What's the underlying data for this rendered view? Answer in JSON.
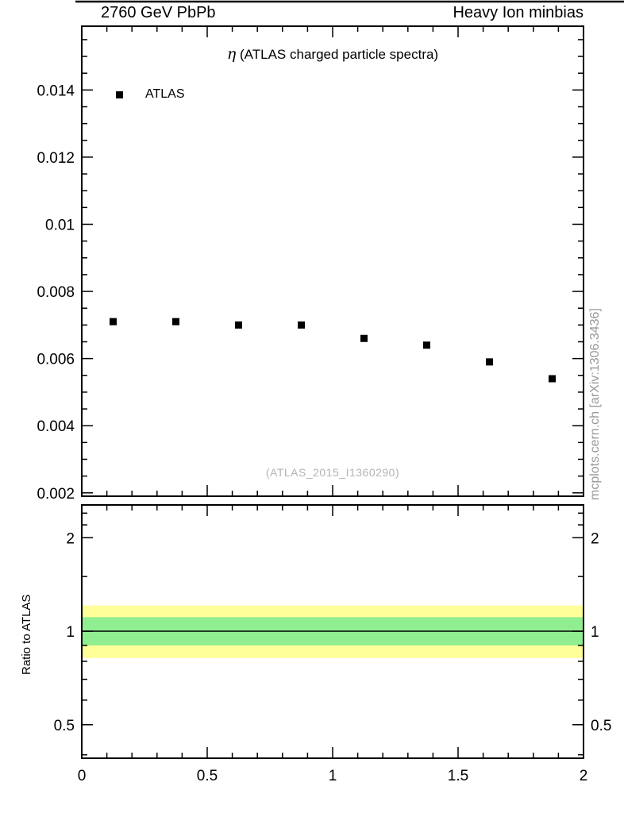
{
  "header": {
    "left": "2760 GeV PbPb",
    "right": "Heavy Ion minbias"
  },
  "side_watermark": "mcplots.cern.ch [arXiv:1306.3436]",
  "chart_data": {
    "type": "scatter",
    "title": "η (ATLAS charged particle spectra)",
    "title_symbol": "η",
    "title_rest": " (ATLAS charged particle spectra)",
    "analysis_tag": "(ATLAS_2015_I1360290)",
    "xlabel": "",
    "legend": [
      {
        "label": "ATLAS",
        "marker": "square",
        "color": "#000000"
      }
    ],
    "x_ticks": [
      0,
      0.5,
      1,
      1.5,
      2
    ],
    "x_tick_labels": [
      "0",
      "0.5",
      "1",
      "1.5",
      "2"
    ],
    "x_minor_step": 0.1,
    "main_panel": {
      "xlim": [
        0,
        2
      ],
      "ylim": [
        0.0019,
        0.0159
      ],
      "y_major_ticks": [
        0.002,
        0.004,
        0.006,
        0.008,
        0.01,
        0.012,
        0.014
      ],
      "y_tick_labels": [
        "0.002",
        "0.004",
        "0.006",
        "0.008",
        "0.01",
        "0.012",
        "0.014"
      ],
      "y_minor_step": 0.0005,
      "grid": false,
      "series": [
        {
          "name": "ATLAS",
          "x": [
            0.125,
            0.375,
            0.625,
            0.875,
            1.125,
            1.375,
            1.625,
            1.875
          ],
          "y": [
            0.0071,
            0.0071,
            0.007,
            0.007,
            0.0066,
            0.0064,
            0.0059,
            0.0054
          ]
        }
      ]
    },
    "ratio_panel": {
      "ylabel": "Ratio to ATLAS",
      "yscale": "log",
      "ylim": [
        0.39,
        2.55
      ],
      "y_major_ticks": [
        0.5,
        1,
        2
      ],
      "y_tick_labels": [
        "0.5",
        "1",
        "2"
      ],
      "y_minor_ticks": [
        0.4,
        0.6,
        0.7,
        0.8,
        0.9,
        1.5,
        2.2,
        2.4
      ],
      "reference_line": 1.0,
      "bands": [
        {
          "name": "outer-uncertainty-band",
          "color": "#ffff99",
          "lo": 0.82,
          "hi": 1.21
        },
        {
          "name": "inner-uncertainty-band",
          "color": "#90ee90",
          "lo": 0.9,
          "hi": 1.11
        }
      ]
    },
    "colors": {
      "marker": "#000000",
      "band_outer": "#ffff99",
      "band_inner": "#90ee90",
      "frame": "#000000"
    }
  }
}
